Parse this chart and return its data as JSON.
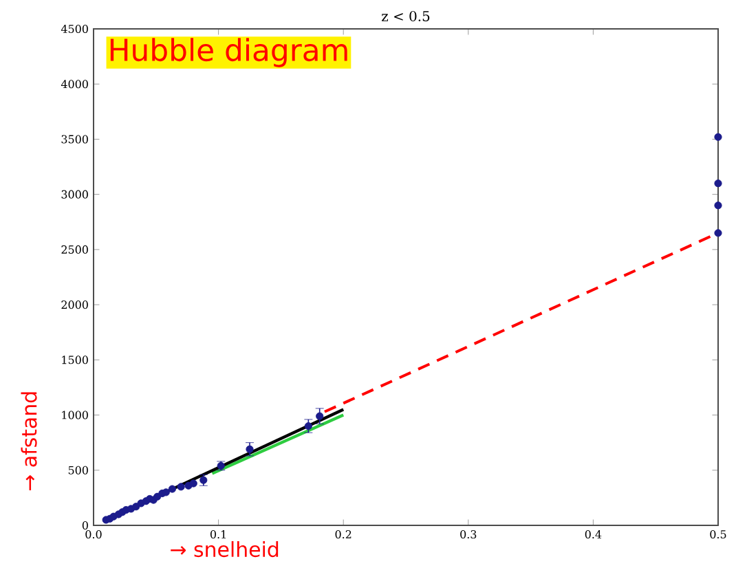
{
  "chart_data": {
    "type": "scatter",
    "title": "z < 0.5",
    "xlabel": "→ snelheid",
    "ylabel": "→ afstand",
    "annotations": [
      "Hubble diagram"
    ],
    "xlim": [
      0,
      0.5
    ],
    "ylim": [
      0,
      4500
    ],
    "xticks": [
      {
        "value": 0,
        "label": "0.0"
      },
      {
        "value": 0.1,
        "label": "0.1"
      },
      {
        "value": 0.2,
        "label": "0.2"
      },
      {
        "value": 0.3,
        "label": "0.3"
      },
      {
        "value": 0.4,
        "label": "0.4"
      },
      {
        "value": 0.5,
        "label": "0.5"
      }
    ],
    "yticks": [
      0,
      500,
      1000,
      1500,
      2000,
      2500,
      3000,
      3500,
      4000,
      4500
    ],
    "grid": false,
    "series": [
      {
        "type": "line",
        "color": "#2ecc40",
        "marker": "none",
        "line_style": "solid",
        "x": [
          0.095,
          0.2
        ],
        "values": [
          470,
          1000
        ]
      },
      {
        "type": "line",
        "color": "#000000",
        "marker": "none",
        "line_style": "solid",
        "x": [
          0.01,
          0.2
        ],
        "values": [
          50,
          1050
        ]
      },
      {
        "color": "#1c1c8c",
        "marker": "circle",
        "x": [
          0.01,
          0.013,
          0.016,
          0.02,
          0.023,
          0.026,
          0.03,
          0.034,
          0.038,
          0.042,
          0.045,
          0.048,
          0.051,
          0.055,
          0.058,
          0.063,
          0.07,
          0.076,
          0.08,
          0.088,
          0.102,
          0.125,
          0.172,
          0.181,
          0.5,
          0.5,
          0.5,
          0.5
        ],
        "values": [
          50,
          60,
          80,
          100,
          120,
          140,
          150,
          170,
          200,
          220,
          240,
          230,
          260,
          290,
          300,
          330,
          350,
          360,
          380,
          410,
          540,
          690,
          900,
          990,
          3520,
          3100,
          2900,
          2650
        ],
        "errors": [
          null,
          null,
          null,
          null,
          null,
          null,
          null,
          null,
          null,
          null,
          null,
          null,
          null,
          null,
          null,
          null,
          null,
          null,
          null,
          50,
          40,
          60,
          60,
          70,
          null,
          null,
          null,
          null
        ]
      },
      {
        "type": "line",
        "color": "#ff0000",
        "marker": "none",
        "line_style": "dashed",
        "x": [
          0.185,
          0.5
        ],
        "values": [
          1030,
          2650
        ]
      }
    ]
  }
}
